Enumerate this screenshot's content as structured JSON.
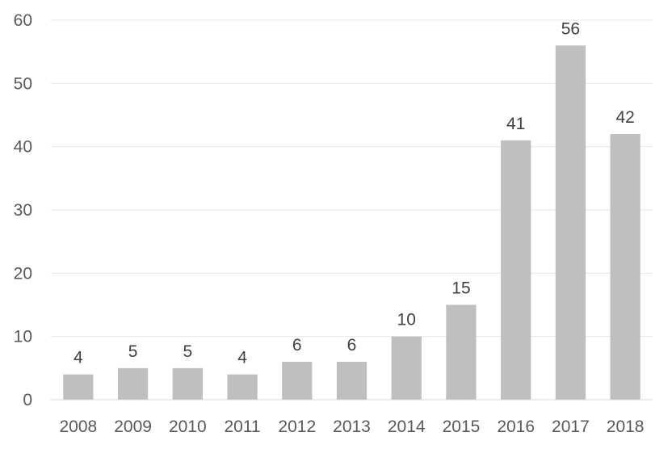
{
  "chart_data": {
    "type": "bar",
    "title": "",
    "xlabel": "",
    "ylabel": "",
    "categories": [
      "2008",
      "2009",
      "2010",
      "2011",
      "2012",
      "2013",
      "2014",
      "2015",
      "2016",
      "2017",
      "2018"
    ],
    "values": [
      4,
      5,
      5,
      4,
      6,
      6,
      10,
      15,
      41,
      56,
      42
    ],
    "ylim": [
      0,
      60
    ],
    "yticks": [
      0,
      10,
      20,
      30,
      40,
      50,
      60
    ],
    "grid": true,
    "legend": "none",
    "bar_color": "#bfbfbf",
    "data_labels": true
  }
}
